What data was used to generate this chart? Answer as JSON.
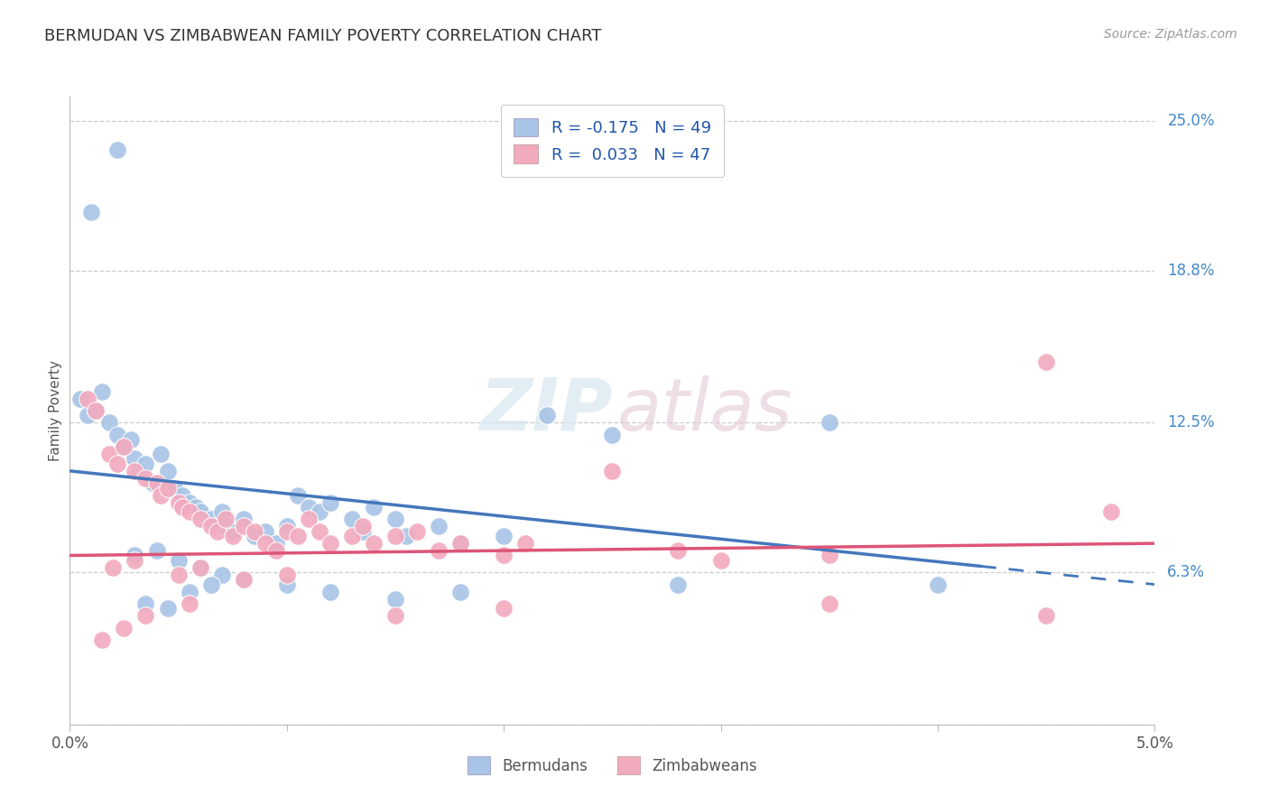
{
  "title": "BERMUDAN VS ZIMBABWEAN FAMILY POVERTY CORRELATION CHART",
  "source": "Source: ZipAtlas.com",
  "ylabel": "Family Poverty",
  "x_min": 0.0,
  "x_max": 5.0,
  "y_min": 0.0,
  "y_max": 26.0,
  "ytick_vals": [
    0.0,
    6.3,
    12.5,
    18.8,
    25.0
  ],
  "ytick_labels": [
    "",
    "6.3%",
    "12.5%",
    "18.8%",
    "25.0%"
  ],
  "xtick_vals": [
    0.0,
    1.0,
    2.0,
    3.0,
    4.0,
    5.0
  ],
  "xtick_labels": [
    "0.0%",
    "",
    "",
    "",
    "",
    "5.0%"
  ],
  "bermudan_color": "#a8c4e6",
  "zimbabwean_color": "#f2aabe",
  "bermudan_line_color": "#4477bb",
  "zimbabwean_line_color": "#dd5577",
  "trend_bermudan_x0": 0.0,
  "trend_bermudan_y0": 10.5,
  "trend_bermudan_x1": 5.0,
  "trend_bermudan_y1": 5.8,
  "trend_zimbabwean_x0": 0.0,
  "trend_zimbabwean_y0": 7.0,
  "trend_zimbabwean_x1": 5.0,
  "trend_zimbabwean_y1": 7.5,
  "dashed_start_x": 4.2,
  "watermark_zip": "ZIP",
  "watermark_atlas": "atlas",
  "scatter_bermudans": [
    [
      0.05,
      13.5
    ],
    [
      0.08,
      12.8
    ],
    [
      0.12,
      13.0
    ],
    [
      0.1,
      21.2
    ],
    [
      0.22,
      23.8
    ],
    [
      0.15,
      13.8
    ],
    [
      0.18,
      12.5
    ],
    [
      0.22,
      12.0
    ],
    [
      0.25,
      11.5
    ],
    [
      0.28,
      11.8
    ],
    [
      0.3,
      11.0
    ],
    [
      0.32,
      10.5
    ],
    [
      0.35,
      10.8
    ],
    [
      0.38,
      10.0
    ],
    [
      0.42,
      11.2
    ],
    [
      0.45,
      10.5
    ],
    [
      0.48,
      9.8
    ],
    [
      0.52,
      9.5
    ],
    [
      0.55,
      9.2
    ],
    [
      0.58,
      9.0
    ],
    [
      0.6,
      8.8
    ],
    [
      0.65,
      8.5
    ],
    [
      0.7,
      8.8
    ],
    [
      0.72,
      8.2
    ],
    [
      0.75,
      8.0
    ],
    [
      0.8,
      8.5
    ],
    [
      0.85,
      7.8
    ],
    [
      0.9,
      8.0
    ],
    [
      0.95,
      7.5
    ],
    [
      1.0,
      8.2
    ],
    [
      1.05,
      9.5
    ],
    [
      1.1,
      9.0
    ],
    [
      1.15,
      8.8
    ],
    [
      1.2,
      9.2
    ],
    [
      1.3,
      8.5
    ],
    [
      1.35,
      8.0
    ],
    [
      1.4,
      9.0
    ],
    [
      1.5,
      8.5
    ],
    [
      1.55,
      7.8
    ],
    [
      1.7,
      8.2
    ],
    [
      1.8,
      7.5
    ],
    [
      2.0,
      7.8
    ],
    [
      2.2,
      12.8
    ],
    [
      2.5,
      12.0
    ],
    [
      3.5,
      12.5
    ],
    [
      0.3,
      7.0
    ],
    [
      0.4,
      7.2
    ],
    [
      0.5,
      6.8
    ],
    [
      0.6,
      6.5
    ],
    [
      0.7,
      6.2
    ],
    [
      0.8,
      6.0
    ],
    [
      1.0,
      5.8
    ],
    [
      1.2,
      5.5
    ],
    [
      0.35,
      5.0
    ],
    [
      0.45,
      4.8
    ],
    [
      0.55,
      5.5
    ],
    [
      0.65,
      5.8
    ],
    [
      1.5,
      5.2
    ],
    [
      1.8,
      5.5
    ],
    [
      2.8,
      5.8
    ],
    [
      4.0,
      5.8
    ]
  ],
  "scatter_zimbabweans": [
    [
      0.08,
      13.5
    ],
    [
      0.12,
      13.0
    ],
    [
      0.18,
      11.2
    ],
    [
      0.22,
      10.8
    ],
    [
      0.25,
      11.5
    ],
    [
      0.3,
      10.5
    ],
    [
      0.35,
      10.2
    ],
    [
      0.4,
      10.0
    ],
    [
      0.42,
      9.5
    ],
    [
      0.45,
      9.8
    ],
    [
      0.5,
      9.2
    ],
    [
      0.52,
      9.0
    ],
    [
      0.55,
      8.8
    ],
    [
      0.6,
      8.5
    ],
    [
      0.65,
      8.2
    ],
    [
      0.68,
      8.0
    ],
    [
      0.72,
      8.5
    ],
    [
      0.75,
      7.8
    ],
    [
      0.8,
      8.2
    ],
    [
      0.85,
      8.0
    ],
    [
      0.9,
      7.5
    ],
    [
      0.95,
      7.2
    ],
    [
      1.0,
      8.0
    ],
    [
      1.05,
      7.8
    ],
    [
      1.1,
      8.5
    ],
    [
      1.15,
      8.0
    ],
    [
      1.2,
      7.5
    ],
    [
      1.3,
      7.8
    ],
    [
      1.35,
      8.2
    ],
    [
      1.4,
      7.5
    ],
    [
      1.5,
      7.8
    ],
    [
      1.6,
      8.0
    ],
    [
      1.7,
      7.2
    ],
    [
      1.8,
      7.5
    ],
    [
      2.0,
      7.0
    ],
    [
      2.1,
      7.5
    ],
    [
      2.5,
      10.5
    ],
    [
      2.8,
      7.2
    ],
    [
      3.0,
      6.8
    ],
    [
      3.5,
      7.0
    ],
    [
      4.5,
      15.0
    ],
    [
      4.8,
      8.8
    ],
    [
      0.2,
      6.5
    ],
    [
      0.3,
      6.8
    ],
    [
      0.5,
      6.2
    ],
    [
      0.6,
      6.5
    ],
    [
      0.8,
      6.0
    ],
    [
      1.0,
      6.2
    ],
    [
      0.15,
      3.5
    ],
    [
      0.25,
      4.0
    ],
    [
      0.35,
      4.5
    ],
    [
      0.55,
      5.0
    ],
    [
      1.5,
      4.5
    ],
    [
      2.0,
      4.8
    ],
    [
      3.5,
      5.0
    ],
    [
      4.5,
      4.5
    ]
  ]
}
